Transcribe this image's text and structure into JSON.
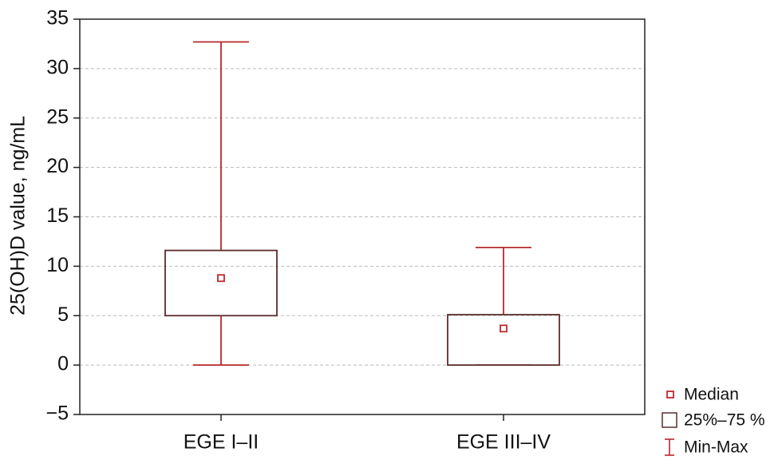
{
  "chart_data": {
    "type": "box",
    "y_label": "25(OH)D value, ng/mL",
    "categories": [
      "EGE I–II",
      "EGE III–IV"
    ],
    "min": [
      0,
      0
    ],
    "q1": [
      5,
      0
    ],
    "median": [
      8.8,
      3.7
    ],
    "q3": [
      11.6,
      5.1
    ],
    "max": [
      32.7,
      11.9
    ],
    "ylim": [
      -5,
      35
    ],
    "yticks": [
      {
        "value": -5,
        "label": "−5"
      },
      0,
      5,
      10,
      15,
      20,
      25,
      30,
      35
    ],
    "grid": true,
    "colors": {
      "median": "#c0282d",
      "box": "#5a2d2d",
      "whisker": "#b8282d"
    },
    "legend": {
      "median": "Median",
      "box": "25%–75 %",
      "whisker": "Min-Max"
    }
  }
}
